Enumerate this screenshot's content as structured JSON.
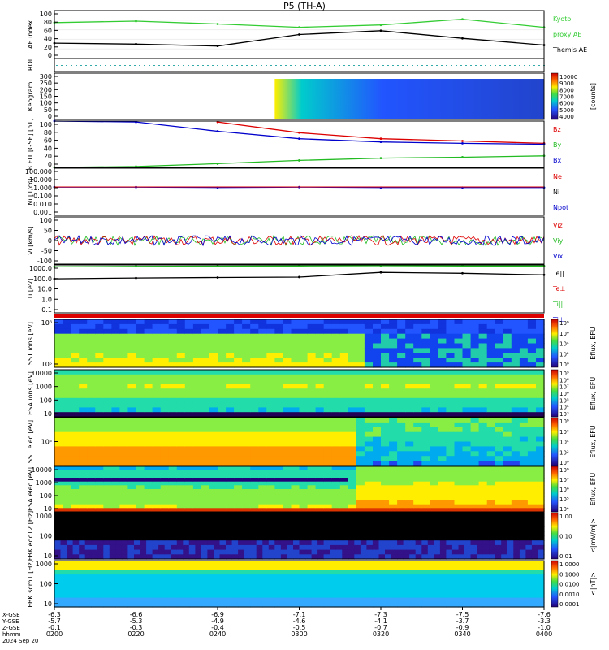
{
  "title": "P5 (TH-A)",
  "colors": {
    "ae_kyoto": "#33cc33",
    "ae_themis": "#000000",
    "red": "#dd0000",
    "green": "#22bb22",
    "blue": "#0000cc"
  },
  "panels": [
    {
      "id": "ae",
      "ylabel": "AE index",
      "yticks": [
        "100",
        "80",
        "60",
        "40",
        "20",
        "0"
      ],
      "legend": [
        {
          "text": "Kyoto",
          "color": "#33cc33"
        },
        {
          "text": "proxy AE",
          "color": "#33cc33"
        },
        {
          "text": "Themis AE",
          "color": "#000000"
        }
      ]
    },
    {
      "id": "roi",
      "ylabel": "ROI",
      "yticks": [],
      "legend": []
    },
    {
      "id": "keogram",
      "ylabel": "Keogram",
      "yticks": [
        "300",
        "250",
        "200",
        "150",
        "100",
        "50",
        "0"
      ],
      "colorbar": {
        "ticks": [
          "10000",
          "9000",
          "8000",
          "7000",
          "6000",
          "5000",
          "4000"
        ],
        "label": "[counts]"
      }
    },
    {
      "id": "bfield",
      "ylabel": "B FIT [GSE] [nT]",
      "yticks": [
        "100",
        "80",
        "60",
        "40",
        "20",
        "0"
      ],
      "legend": [
        {
          "text": "Bz",
          "color": "#dd0000"
        },
        {
          "text": "By",
          "color": "#22bb22"
        },
        {
          "text": "Bx",
          "color": "#0000cc"
        }
      ]
    },
    {
      "id": "density",
      "ylabel": "Ni [1/cc]",
      "yticks": [
        "100.000",
        "10.000",
        "1.000",
        "0.100",
        "0.010",
        "0.001"
      ],
      "legend": [
        {
          "text": "Ne",
          "color": "#dd0000"
        },
        {
          "text": "Ni",
          "color": "#000000"
        },
        {
          "text": "Npot",
          "color": "#0000cc"
        }
      ]
    },
    {
      "id": "velocity",
      "ylabel": "Vi [km/s]",
      "yticks": [
        "100",
        "50",
        "0",
        "-50",
        "-100"
      ],
      "legend": [
        {
          "text": "Viz",
          "color": "#dd0000"
        },
        {
          "text": "Viy",
          "color": "#22bb22"
        },
        {
          "text": "Vix",
          "color": "#0000cc"
        }
      ]
    },
    {
      "id": "temperature",
      "ylabel": "Ti [eV]",
      "yticks": [
        "1000.0",
        "100.0",
        "10.0",
        "1.0",
        "0.1"
      ],
      "legend": [
        {
          "text": "Te||",
          "color": "#000000"
        },
        {
          "text": "Te⊥",
          "color": "#dd0000"
        },
        {
          "text": "Ti||",
          "color": "#22bb22"
        },
        {
          "text": "Ti⊥",
          "color": "#0000cc"
        }
      ]
    },
    {
      "id": "sst_ion",
      "ylabel": "SST ions [eV]",
      "yticks": [
        "10⁶",
        "10⁵"
      ],
      "colorbar": {
        "ticks": [
          "10⁸",
          "10⁶",
          "10⁴",
          "10²",
          "10⁰"
        ],
        "label": "Eflux, EFU"
      }
    },
    {
      "id": "esa_ion",
      "ylabel": "ESA ions [eV]",
      "yticks": [
        "10000",
        "1000",
        "100",
        "10"
      ],
      "colorbar": {
        "ticks": [
          "10⁹",
          "10⁸",
          "10⁷",
          "10⁶",
          "10⁵",
          "10⁴",
          "10³"
        ],
        "label": "Eflux, EFU"
      }
    },
    {
      "id": "sst_elec",
      "ylabel": "SST elec [eV]",
      "yticks": [
        "10⁵"
      ],
      "colorbar": {
        "ticks": [
          "10⁸",
          "10⁶",
          "10⁴",
          "10²",
          "10⁰"
        ],
        "label": "Eflux, EFU"
      }
    },
    {
      "id": "esa_elec",
      "ylabel": "ESA elec [eV]",
      "yticks": [
        "10000",
        "1000",
        "100",
        "10"
      ],
      "colorbar": {
        "ticks": [
          "10⁸",
          "10⁷",
          "10⁶",
          "10⁵",
          "10⁴"
        ],
        "label": "Eflux, EFU"
      }
    },
    {
      "id": "fbk_e",
      "ylabel": "FBK edc12 [Hz]",
      "yticks": [
        "1000",
        "100",
        "10"
      ],
      "colorbar": {
        "ticks": [
          "1.00",
          "0.10",
          "0.01"
        ],
        "label": "<|mV/m|>"
      }
    },
    {
      "id": "fbk_b",
      "ylabel": "FBK scm1 [Hz]",
      "yticks": [
        "1000",
        "100",
        "10"
      ],
      "colorbar": {
        "ticks": [
          "1.0000",
          "0.1000",
          "0.0100",
          "0.0010",
          "0.0001"
        ],
        "label": "<|nT|>"
      }
    }
  ],
  "xaxis": {
    "row_labels": [
      "X-GSE",
      "Y-GSE",
      "Z-GSE",
      "hhmm",
      "2024 Sep 20"
    ],
    "columns": [
      [
        "-6.3",
        "-5.7",
        "-0.1",
        "0200"
      ],
      [
        "-6.6",
        "-5.3",
        "-0.3",
        "0220"
      ],
      [
        "-6.9",
        "-4.9",
        "-0.4",
        "0240"
      ],
      [
        "-7.1",
        "-4.6",
        "-0.5",
        "0300"
      ],
      [
        "-7.3",
        "-4.1",
        "-0.7",
        "0320"
      ],
      [
        "-7.5",
        "-3.7",
        "-0.9",
        "0340"
      ],
      [
        "-7.6",
        "-3.3",
        "-1.0",
        "0400"
      ]
    ]
  },
  "chart_data": {
    "type": "line",
    "title": "P5 (TH-A)",
    "x": [
      "0200",
      "0220",
      "0240",
      "0300",
      "0320",
      "0340",
      "0400"
    ],
    "xlabel": "hhmm",
    "series": [
      {
        "name": "Kyoto proxy AE",
        "panel": "AE index",
        "values": [
          75,
          78,
          72,
          65,
          70,
          82,
          65
        ]
      },
      {
        "name": "Themis AE",
        "panel": "AE index",
        "values": [
          32,
          30,
          26,
          50,
          58,
          42,
          28
        ]
      },
      {
        "name": "Bz",
        "panel": "B FIT",
        "values": [
          null,
          null,
          98,
          75,
          62,
          57,
          52
        ]
      },
      {
        "name": "By",
        "panel": "B FIT",
        "values": [
          0,
          2,
          8,
          15,
          20,
          22,
          25
        ]
      },
      {
        "name": "Bx",
        "panel": "B FIT",
        "values": [
          100,
          98,
          78,
          62,
          55,
          52,
          50
        ]
      },
      {
        "name": "Ni",
        "panel": "Ni",
        "values": [
          1.0,
          1.0,
          0.9,
          1.0,
          0.9,
          0.9,
          0.9
        ]
      },
      {
        "name": "Te||",
        "panel": "Ti",
        "values": [
          150,
          180,
          200,
          220,
          600,
          500,
          350
        ]
      },
      {
        "name": "Ti||",
        "panel": "Ti",
        "values": [
          2000,
          2200,
          2300,
          2400,
          2500,
          2400,
          2400
        ]
      }
    ],
    "ylim": [
      0,
      100
    ]
  }
}
